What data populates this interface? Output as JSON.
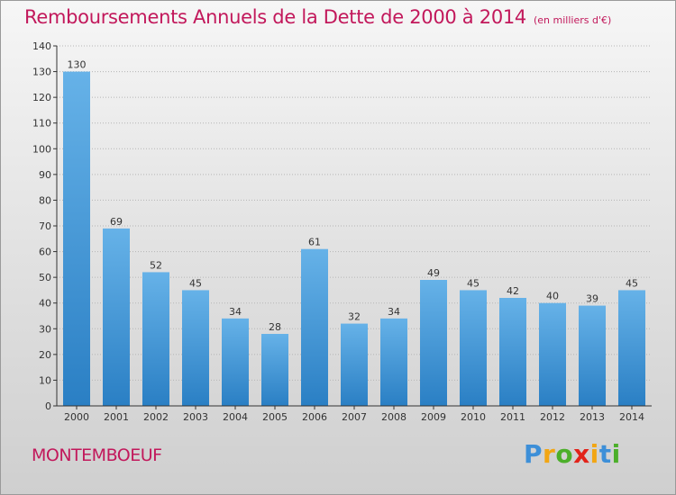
{
  "chart_data": {
    "type": "bar",
    "title": "Remboursements Annuels de la Dette de 2000 à 2014",
    "subtitle": "(en milliers d'€)",
    "categories": [
      "2000",
      "2001",
      "2002",
      "2003",
      "2004",
      "2005",
      "2006",
      "2007",
      "2008",
      "2009",
      "2010",
      "2011",
      "2012",
      "2013",
      "2014"
    ],
    "values": [
      130,
      69,
      52,
      45,
      34,
      28,
      61,
      32,
      34,
      49,
      45,
      42,
      40,
      39,
      45
    ],
    "ylim": [
      0,
      140
    ],
    "yticks": [
      0,
      10,
      20,
      30,
      40,
      50,
      60,
      70,
      80,
      90,
      100,
      110,
      120,
      130,
      140
    ],
    "grid": true,
    "data_labels": true,
    "bar_color_light": "#66b2e8",
    "bar_color_dark": "#2a7fc4"
  },
  "place": "MONTEMBOEUF",
  "logo": {
    "letters": [
      "P",
      "r",
      "o",
      "x",
      "i",
      "t",
      "i"
    ],
    "colors": [
      "#3d8fd8",
      "#f2a614",
      "#4caf2a",
      "#e2231a",
      "#f2a614",
      "#3d8fd8",
      "#4caf2a"
    ]
  },
  "colors": {
    "title": "#c2185b",
    "axis": "#333333",
    "grid": "#b5b5b5"
  }
}
